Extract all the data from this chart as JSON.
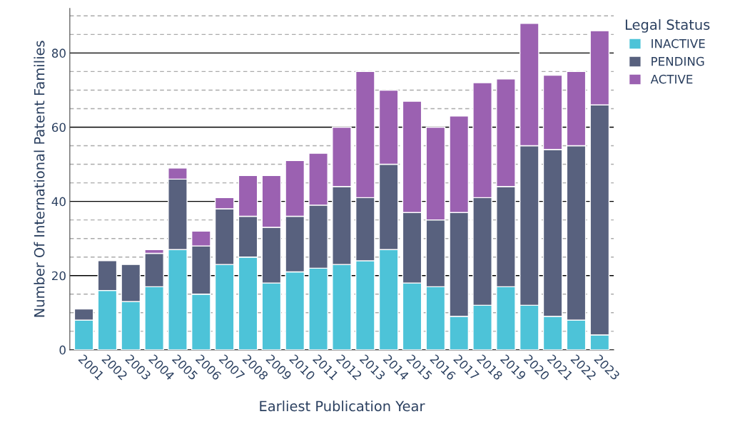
{
  "chart_data": {
    "type": "bar",
    "stacked": true,
    "xlabel": "Earliest Publication Year",
    "ylabel": "Number Of International Patent Families",
    "legend_title": "Legal Status",
    "legend": "top right",
    "categories": [
      "2001",
      "2002",
      "2003",
      "2004",
      "2005",
      "2006",
      "2007",
      "2008",
      "2009",
      "2010",
      "2011",
      "2012",
      "2013",
      "2014",
      "2015",
      "2016",
      "2017",
      "2018",
      "2019",
      "2020",
      "2021",
      "2022",
      "2023"
    ],
    "series": [
      {
        "name": "INACTIVE",
        "color": "#4dc3d8",
        "values": [
          8,
          16,
          13,
          17,
          27,
          15,
          23,
          25,
          18,
          21,
          22,
          23,
          24,
          27,
          18,
          17,
          9,
          12,
          17,
          12,
          9,
          8,
          4
        ]
      },
      {
        "name": "PENDING",
        "color": "#58617e",
        "values": [
          3,
          8,
          10,
          9,
          19,
          13,
          15,
          11,
          15,
          15,
          17,
          21,
          17,
          23,
          19,
          18,
          28,
          29,
          27,
          43,
          45,
          47,
          62
        ]
      },
      {
        "name": "ACTIVE",
        "color": "#9b61b1",
        "values": [
          null,
          null,
          null,
          1,
          3,
          4,
          3,
          11,
          14,
          15,
          14,
          16,
          34,
          20,
          30,
          25,
          26,
          31,
          29,
          33,
          20,
          20,
          20
        ]
      }
    ],
    "ylim": [
      0,
      92
    ],
    "yticks": [
      0,
      {
        "value": 5,
        "label": null
      },
      {
        "value": 10,
        "label": null
      },
      {
        "value": 15,
        "label": null
      },
      20,
      {
        "value": 25,
        "label": null
      },
      {
        "value": 30,
        "label": null
      },
      {
        "value": 35,
        "label": null
      },
      40,
      {
        "value": 45,
        "label": null
      },
      {
        "value": 50,
        "label": null
      },
      {
        "value": 55,
        "label": null
      },
      60,
      {
        "value": 65,
        "label": null
      },
      {
        "value": 70,
        "label": null
      },
      {
        "value": 75,
        "label": null
      },
      80,
      {
        "value": 85,
        "label": null
      },
      {
        "value": 90,
        "label": null
      }
    ],
    "grid": "y"
  }
}
